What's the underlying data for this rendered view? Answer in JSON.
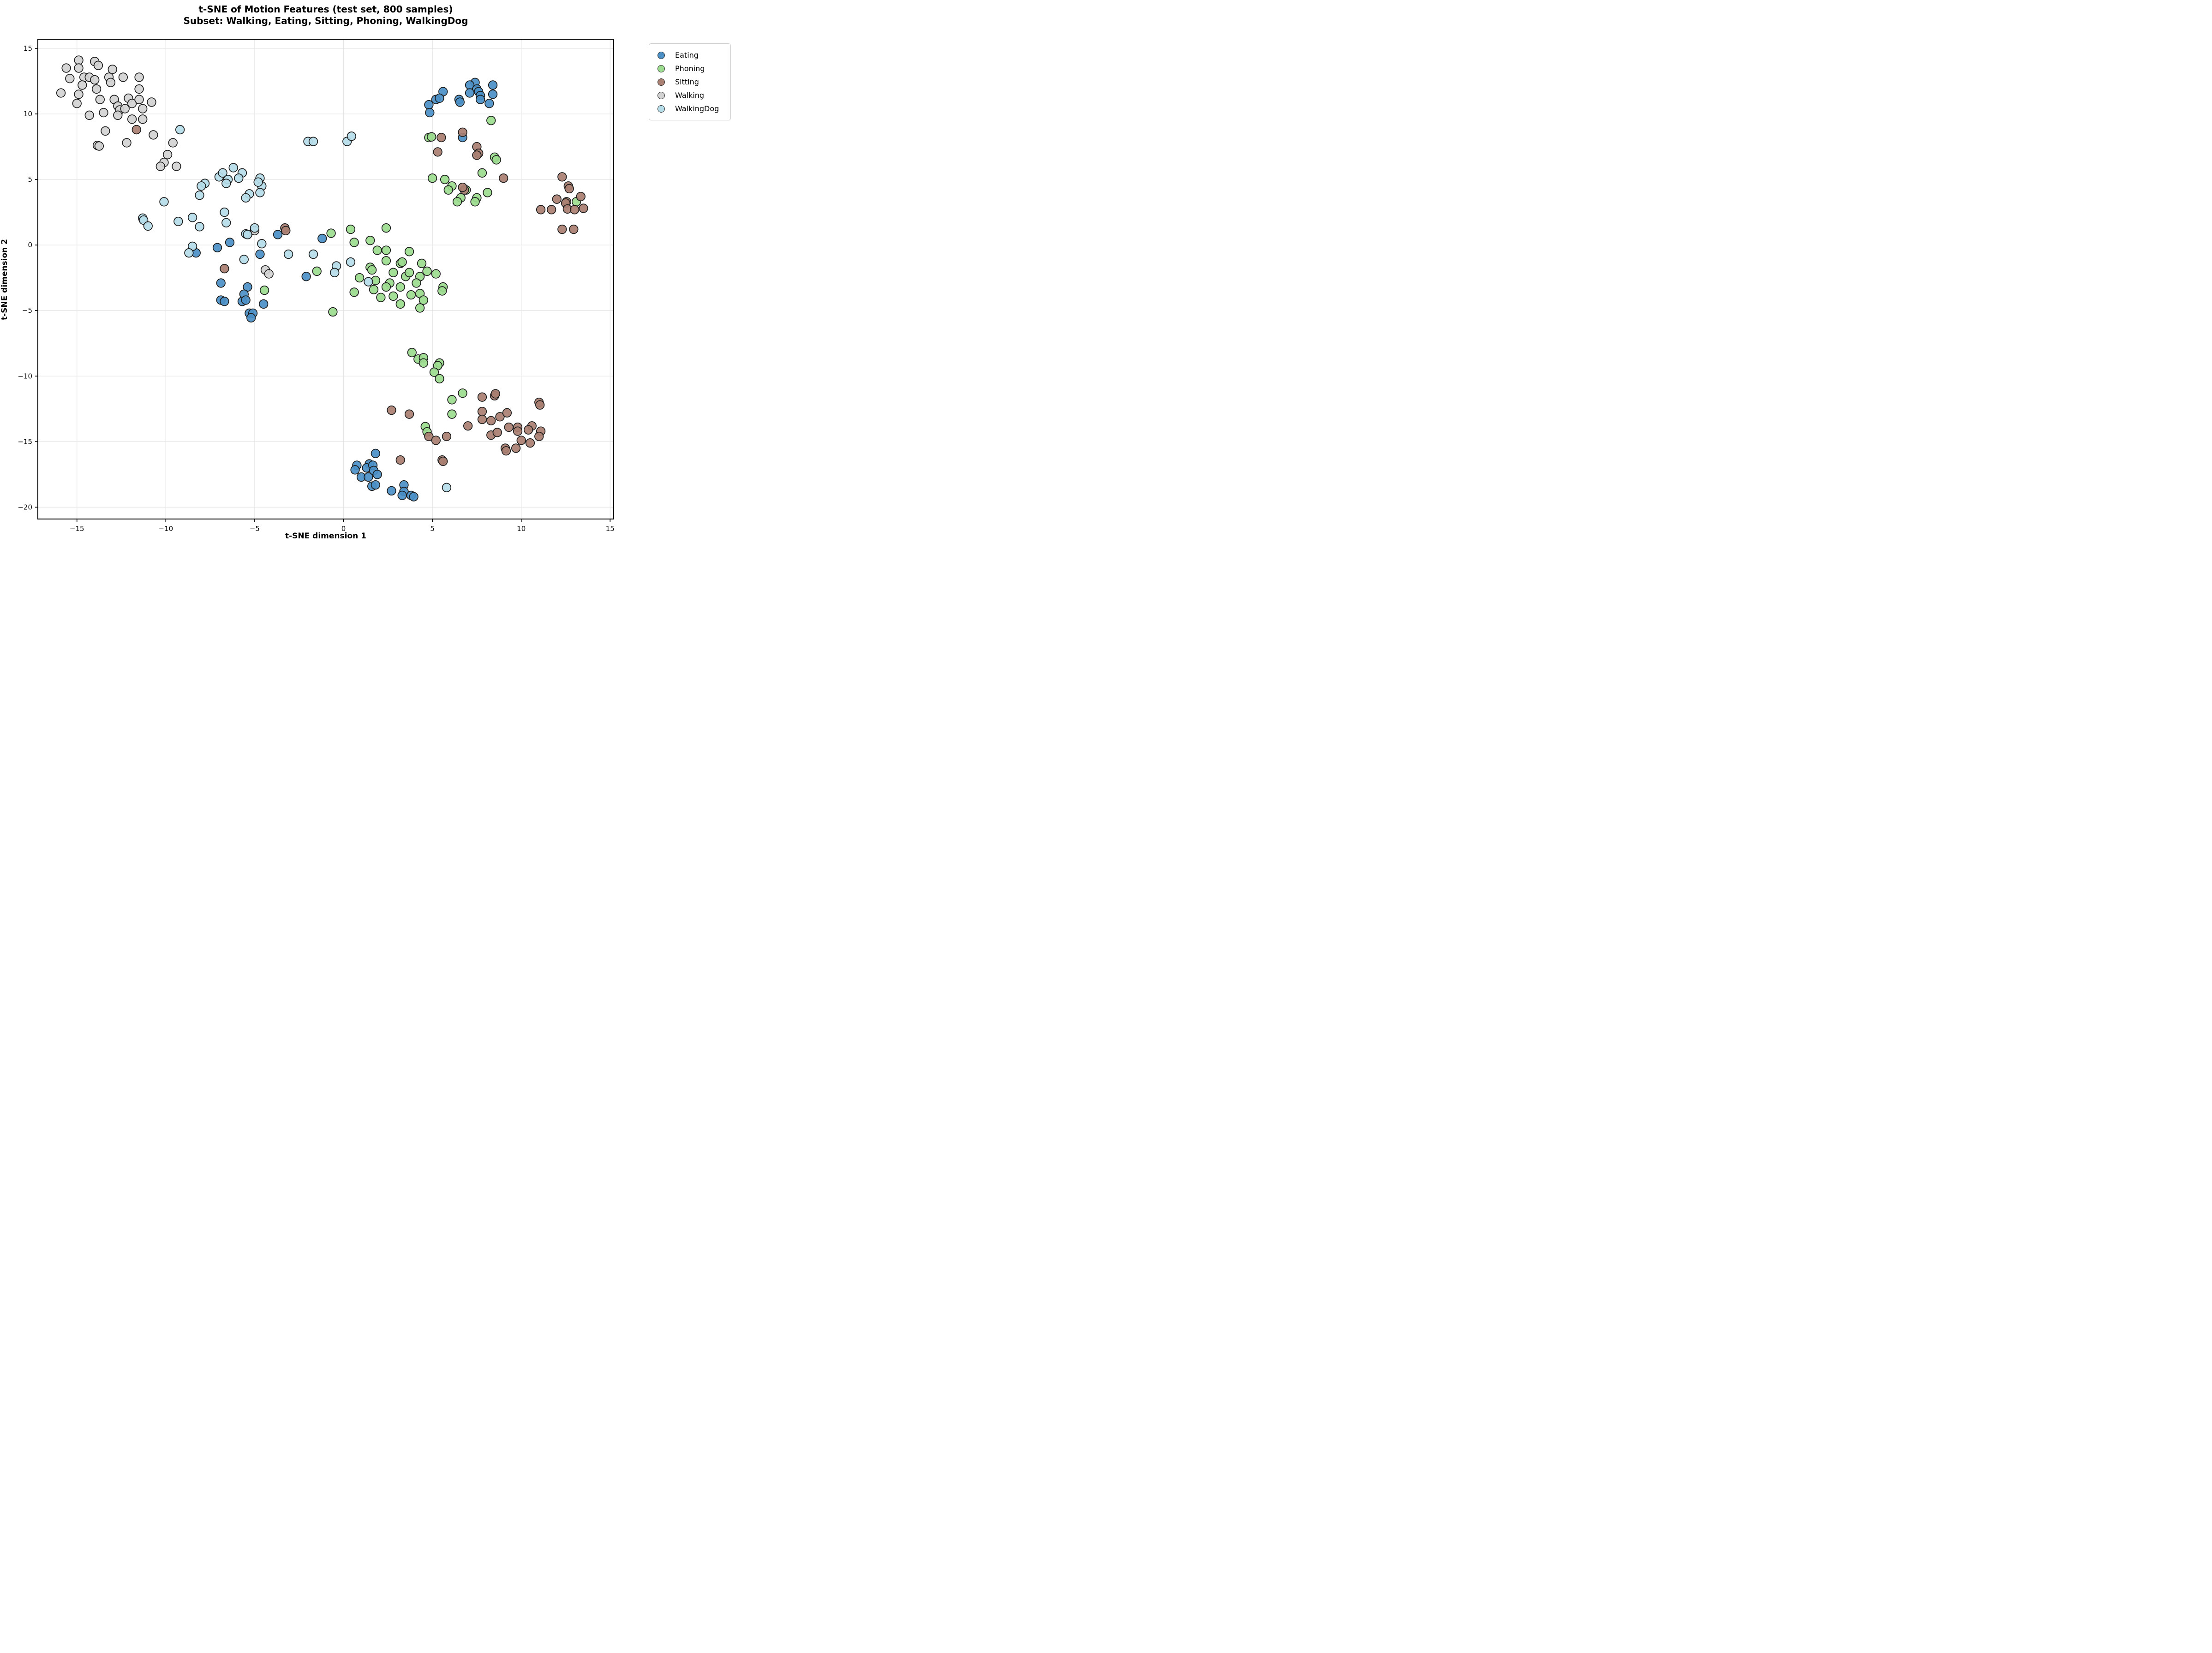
{
  "chart": {
    "title_line1": "t-SNE of Motion Features (test set, 800 samples)",
    "title_line2": "Subset: Walking, Eating, Sitting, Phoning, WalkingDog",
    "xlabel": "t-SNE dimension 1",
    "ylabel": "t-SNE dimension 2"
  },
  "colors": {
    "background": "#ffffff",
    "gridline": "#e5e5e5",
    "spine": "#000000",
    "tick": "#000000",
    "marker_edge": "#1c1c1c",
    "legend_border": "#cccccc"
  },
  "chart_data": {
    "type": "scatter",
    "title": "t-SNE of Motion Features (test set, 800 samples)",
    "subtitle": "Subset: Walking, Eating, Sitting, Phoning, WalkingDog",
    "xlabel": "t-SNE dimension 1",
    "ylabel": "t-SNE dimension 2",
    "xlim": [
      -17.2,
      15.2
    ],
    "ylim": [
      -20.9,
      15.7
    ],
    "grid": true,
    "legend_position": "outside upper right",
    "marker": {
      "radius_px": 9.3,
      "edge_width": 1.7,
      "fill_opacity": 0.92
    },
    "xticks": {
      "values": [
        -15,
        -10,
        -5,
        0,
        5,
        10,
        15
      ],
      "labels": [
        "−15",
        "−10",
        "−5",
        "0",
        "5",
        "10",
        "15"
      ]
    },
    "yticks": {
      "values": [
        15,
        10,
        5,
        0,
        -5,
        -10,
        -15,
        -20
      ],
      "labels": [
        "15",
        "10",
        "5",
        "0",
        "−5",
        "−10",
        "−15",
        "−20"
      ]
    },
    "series": [
      {
        "name": "Eating",
        "color": "#4a8fc6",
        "points": [
          [
            7.4,
            12.4
          ],
          [
            7.1,
            12.2
          ],
          [
            7.5,
            11.9
          ],
          [
            7.6,
            11.7
          ],
          [
            8.4,
            12.2
          ],
          [
            5.6,
            11.7
          ],
          [
            5.2,
            11.1
          ],
          [
            5.4,
            11.2
          ],
          [
            7.1,
            11.6
          ],
          [
            7.7,
            11.4
          ],
          [
            8.4,
            11.5
          ],
          [
            6.5,
            11.1
          ],
          [
            6.55,
            10.9
          ],
          [
            7.7,
            11.1
          ],
          [
            8.2,
            10.8
          ],
          [
            4.8,
            10.7
          ],
          [
            4.85,
            10.1
          ],
          [
            6.7,
            8.2
          ],
          [
            -6.4,
            0.2
          ],
          [
            -7.1,
            -0.2
          ],
          [
            -8.3,
            -0.6
          ],
          [
            -4.7,
            -0.7
          ],
          [
            -6.9,
            -2.9
          ],
          [
            -5.4,
            -3.2
          ],
          [
            -6.9,
            -4.2
          ],
          [
            -6.7,
            -4.3
          ],
          [
            -5.6,
            -3.75
          ],
          [
            -5.7,
            -4.3
          ],
          [
            -5.5,
            -4.2
          ],
          [
            -4.5,
            -4.5
          ],
          [
            -5.3,
            -5.2
          ],
          [
            -5.1,
            -5.2
          ],
          [
            -5.2,
            -5.55
          ],
          [
            -3.7,
            0.8
          ],
          [
            -1.2,
            0.5
          ],
          [
            -2.1,
            -2.4
          ],
          [
            1.8,
            -15.9
          ],
          [
            0.75,
            -16.8
          ],
          [
            0.65,
            -17.15
          ],
          [
            1.45,
            -16.7
          ],
          [
            1.3,
            -17.0
          ],
          [
            1.65,
            -16.8
          ],
          [
            1.7,
            -17.2
          ],
          [
            1.9,
            -17.5
          ],
          [
            1.0,
            -17.7
          ],
          [
            1.4,
            -17.7
          ],
          [
            1.6,
            -18.4
          ],
          [
            1.8,
            -18.3
          ],
          [
            2.7,
            -18.75
          ],
          [
            3.4,
            -18.3
          ],
          [
            3.4,
            -18.8
          ],
          [
            3.3,
            -19.1
          ],
          [
            3.8,
            -19.1
          ],
          [
            3.95,
            -19.2
          ]
        ]
      },
      {
        "name": "Phoning",
        "color": "#9bdc8e",
        "points": [
          [
            -0.7,
            0.9
          ],
          [
            0.4,
            1.2
          ],
          [
            2.4,
            1.3
          ],
          [
            0.6,
            0.2
          ],
          [
            1.5,
            0.35
          ],
          [
            1.9,
            -0.4
          ],
          [
            2.4,
            -0.4
          ],
          [
            3.7,
            -0.5
          ],
          [
            2.4,
            -1.2
          ],
          [
            3.2,
            -1.4
          ],
          [
            3.3,
            -1.3
          ],
          [
            -1.5,
            -2.0
          ],
          [
            1.5,
            -1.7
          ],
          [
            1.6,
            -1.9
          ],
          [
            0.9,
            -2.5
          ],
          [
            1.8,
            -2.7
          ],
          [
            2.6,
            -2.9
          ],
          [
            2.4,
            -3.2
          ],
          [
            2.8,
            -2.1
          ],
          [
            3.5,
            -2.4
          ],
          [
            3.7,
            -2.1
          ],
          [
            3.2,
            -3.2
          ],
          [
            1.7,
            -3.4
          ],
          [
            0.6,
            -3.6
          ],
          [
            2.1,
            -4.0
          ],
          [
            2.8,
            -3.9
          ],
          [
            3.2,
            -4.5
          ],
          [
            3.8,
            -3.8
          ],
          [
            -0.6,
            -5.1
          ],
          [
            4.4,
            -1.4
          ],
          [
            4.7,
            -2.0
          ],
          [
            4.3,
            -2.4
          ],
          [
            5.2,
            -2.2
          ],
          [
            4.1,
            -2.9
          ],
          [
            4.3,
            -3.7
          ],
          [
            4.5,
            -4.2
          ],
          [
            4.3,
            -4.8
          ],
          [
            5.6,
            -3.2
          ],
          [
            5.55,
            -3.5
          ],
          [
            -4.45,
            -3.45
          ],
          [
            8.3,
            9.5
          ],
          [
            4.8,
            8.2
          ],
          [
            4.95,
            8.25
          ],
          [
            8.5,
            6.7
          ],
          [
            8.6,
            6.5
          ],
          [
            7.8,
            5.5
          ],
          [
            5.0,
            5.1
          ],
          [
            5.7,
            5.0
          ],
          [
            6.1,
            4.5
          ],
          [
            5.9,
            4.2
          ],
          [
            6.9,
            4.2
          ],
          [
            8.1,
            4.0
          ],
          [
            6.6,
            3.6
          ],
          [
            6.4,
            3.3
          ],
          [
            7.5,
            3.6
          ],
          [
            7.4,
            3.3
          ],
          [
            13.1,
            3.3
          ],
          [
            3.85,
            -8.2
          ],
          [
            4.2,
            -8.7
          ],
          [
            4.5,
            -8.6
          ],
          [
            4.5,
            -9.0
          ],
          [
            5.4,
            -9.0
          ],
          [
            5.3,
            -9.2
          ],
          [
            5.1,
            -9.7
          ],
          [
            5.4,
            -10.2
          ],
          [
            6.7,
            -11.3
          ],
          [
            6.1,
            -11.8
          ],
          [
            6.1,
            -12.9
          ],
          [
            4.6,
            -13.85
          ],
          [
            4.7,
            -14.25
          ]
        ]
      },
      {
        "name": "Sitting",
        "color": "#a97f71",
        "points": [
          [
            -11.65,
            8.8
          ],
          [
            -3.3,
            1.3
          ],
          [
            -3.25,
            1.1
          ],
          [
            -6.7,
            -1.8
          ],
          [
            5.5,
            8.2
          ],
          [
            6.7,
            8.6
          ],
          [
            5.3,
            7.1
          ],
          [
            7.5,
            7.5
          ],
          [
            7.6,
            7.0
          ],
          [
            7.5,
            6.85
          ],
          [
            9.0,
            5.1
          ],
          [
            6.8,
            4.2
          ],
          [
            6.7,
            4.4
          ],
          [
            12.3,
            5.2
          ],
          [
            12.65,
            4.5
          ],
          [
            12.7,
            4.3
          ],
          [
            12.0,
            3.5
          ],
          [
            13.35,
            3.7
          ],
          [
            12.55,
            3.3
          ],
          [
            12.5,
            3.2
          ],
          [
            13.5,
            2.8
          ],
          [
            11.1,
            2.7
          ],
          [
            11.7,
            2.7
          ],
          [
            12.6,
            2.75
          ],
          [
            13.0,
            2.7
          ],
          [
            12.3,
            1.2
          ],
          [
            12.95,
            1.2
          ],
          [
            2.7,
            -12.6
          ],
          [
            3.7,
            -12.9
          ],
          [
            7.8,
            -11.6
          ],
          [
            8.5,
            -11.5
          ],
          [
            8.55,
            -11.35
          ],
          [
            11.0,
            -12.0
          ],
          [
            11.05,
            -12.2
          ],
          [
            7.8,
            -12.7
          ],
          [
            7.8,
            -13.3
          ],
          [
            8.3,
            -13.4
          ],
          [
            8.8,
            -13.1
          ],
          [
            9.2,
            -12.8
          ],
          [
            7.0,
            -13.8
          ],
          [
            9.3,
            -13.9
          ],
          [
            8.3,
            -14.5
          ],
          [
            8.65,
            -14.3
          ],
          [
            9.8,
            -13.9
          ],
          [
            9.8,
            -14.2
          ],
          [
            10.6,
            -13.8
          ],
          [
            10.4,
            -14.1
          ],
          [
            11.1,
            -14.2
          ],
          [
            11.0,
            -14.6
          ],
          [
            10.0,
            -14.9
          ],
          [
            10.5,
            -15.1
          ],
          [
            4.8,
            -14.6
          ],
          [
            5.2,
            -14.9
          ],
          [
            5.8,
            -14.6
          ],
          [
            9.1,
            -15.5
          ],
          [
            9.15,
            -15.7
          ],
          [
            9.7,
            -15.5
          ],
          [
            3.2,
            -16.4
          ],
          [
            5.55,
            -16.4
          ],
          [
            5.6,
            -16.5
          ]
        ]
      },
      {
        "name": "Walking",
        "color": "#d2d2d2",
        "points": [
          [
            -14.9,
            14.1
          ],
          [
            -14.0,
            14.0
          ],
          [
            -15.6,
            13.5
          ],
          [
            -14.9,
            13.5
          ],
          [
            -13.8,
            13.7
          ],
          [
            -13.0,
            13.4
          ],
          [
            -15.4,
            12.7
          ],
          [
            -14.6,
            12.8
          ],
          [
            -14.3,
            12.8
          ],
          [
            -14.0,
            12.6
          ],
          [
            -13.2,
            12.8
          ],
          [
            -13.1,
            12.4
          ],
          [
            -12.4,
            12.8
          ],
          [
            -11.5,
            12.8
          ],
          [
            -14.7,
            12.2
          ],
          [
            -13.9,
            11.9
          ],
          [
            -15.9,
            11.6
          ],
          [
            -14.9,
            11.5
          ],
          [
            -11.5,
            11.9
          ],
          [
            -13.7,
            11.1
          ],
          [
            -15.0,
            10.8
          ],
          [
            -12.9,
            11.1
          ],
          [
            -12.1,
            11.2
          ],
          [
            -11.9,
            10.8
          ],
          [
            -11.5,
            11.1
          ],
          [
            -10.8,
            10.9
          ],
          [
            -11.3,
            10.4
          ],
          [
            -12.7,
            10.6
          ],
          [
            -12.6,
            10.3
          ],
          [
            -12.3,
            10.4
          ],
          [
            -13.5,
            10.1
          ],
          [
            -14.3,
            9.9
          ],
          [
            -12.7,
            9.9
          ],
          [
            -11.9,
            9.6
          ],
          [
            -11.3,
            9.6
          ],
          [
            -13.4,
            8.7
          ],
          [
            -10.7,
            8.4
          ],
          [
            -12.2,
            7.8
          ],
          [
            -13.85,
            7.6
          ],
          [
            -13.75,
            7.55
          ],
          [
            -9.6,
            7.8
          ],
          [
            -9.9,
            6.9
          ],
          [
            -10.1,
            6.3
          ],
          [
            -10.3,
            6.0
          ],
          [
            -9.4,
            6.0
          ],
          [
            -5.0,
            1.1
          ],
          [
            -4.4,
            -1.9
          ],
          [
            -4.2,
            -2.2
          ]
        ]
      },
      {
        "name": "WalkingDog",
        "color": "#b5dde9",
        "points": [
          [
            -9.2,
            8.8
          ],
          [
            -2.0,
            7.9
          ],
          [
            -1.7,
            7.9
          ],
          [
            0.2,
            7.9
          ],
          [
            0.45,
            8.3
          ],
          [
            -7.0,
            5.2
          ],
          [
            -6.8,
            5.5
          ],
          [
            -6.2,
            5.9
          ],
          [
            -5.7,
            5.5
          ],
          [
            -5.9,
            5.1
          ],
          [
            -6.5,
            5.0
          ],
          [
            -4.7,
            5.1
          ],
          [
            -4.6,
            4.5
          ],
          [
            -5.3,
            3.9
          ],
          [
            -7.8,
            4.7
          ],
          [
            -8.0,
            4.5
          ],
          [
            -6.6,
            4.7
          ],
          [
            -4.8,
            4.8
          ],
          [
            -8.1,
            3.8
          ],
          [
            -4.7,
            4.0
          ],
          [
            -5.5,
            3.6
          ],
          [
            -10.1,
            3.3
          ],
          [
            -6.7,
            2.5
          ],
          [
            -8.5,
            2.1
          ],
          [
            -11.3,
            2.05
          ],
          [
            -11.25,
            1.9
          ],
          [
            -9.3,
            1.8
          ],
          [
            -6.6,
            1.7
          ],
          [
            -8.1,
            1.4
          ],
          [
            -11.0,
            1.45
          ],
          [
            -5.0,
            1.3
          ],
          [
            -5.5,
            0.85
          ],
          [
            -5.4,
            0.8
          ],
          [
            -4.6,
            0.1
          ],
          [
            -8.5,
            -0.1
          ],
          [
            -8.7,
            -0.6
          ],
          [
            -5.6,
            -1.1
          ],
          [
            -3.1,
            -0.7
          ],
          [
            -1.7,
            -0.7
          ],
          [
            0.4,
            -1.3
          ],
          [
            -0.4,
            -1.6
          ],
          [
            -0.5,
            -2.1
          ],
          [
            1.4,
            -2.8
          ],
          [
            5.8,
            -18.5
          ]
        ]
      }
    ]
  }
}
